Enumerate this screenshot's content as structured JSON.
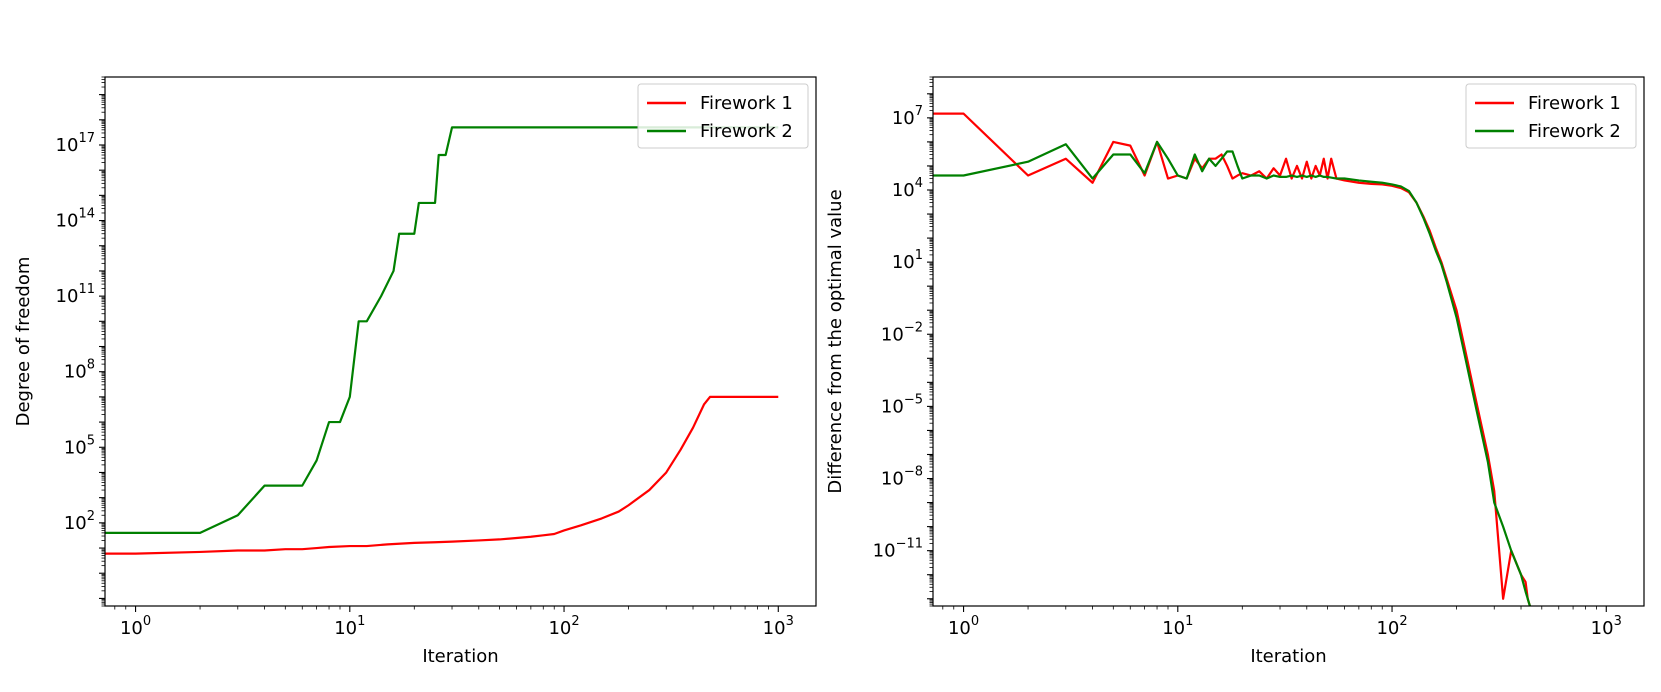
{
  "colors": {
    "firework_1": "#ff0000",
    "firework_2": "#008000"
  },
  "legend": {
    "items": [
      "Firework 1",
      "Firework 2"
    ],
    "placement": "top-right"
  },
  "chart_data": [
    {
      "type": "line",
      "xlabel": "Iteration",
      "ylabel": "Degree of freedom",
      "xscale": "log",
      "yscale": "log",
      "xlim": [
        0.72,
        1500
      ],
      "ylim": [
        0.05,
        5e+19
      ],
      "xticks": [
        {
          "base": "10",
          "exp": "0",
          "value": 1
        },
        {
          "base": "10",
          "exp": "1",
          "value": 10
        },
        {
          "base": "10",
          "exp": "2",
          "value": 100
        },
        {
          "base": "10",
          "exp": "3",
          "value": 1000
        }
      ],
      "yticks": [
        {
          "base": "10",
          "exp": "2",
          "value": 100
        },
        {
          "base": "10",
          "exp": "5",
          "value": 100000
        },
        {
          "base": "10",
          "exp": "8",
          "value": 100000000
        },
        {
          "base": "10",
          "exp": "11",
          "value": 100000000000
        },
        {
          "base": "10",
          "exp": "14",
          "value": 100000000000000
        },
        {
          "base": "10",
          "exp": "17",
          "value": 100000000000000000
        }
      ],
      "grid": false,
      "legend": "top-right",
      "series": [
        {
          "name": "Firework 1",
          "color": "#ff0000",
          "x": [
            0.72,
            1,
            2,
            3,
            4,
            5,
            6,
            7,
            8,
            10,
            12,
            15,
            20,
            25,
            30,
            40,
            50,
            60,
            70,
            80,
            90,
            100,
            120,
            150,
            180,
            200,
            250,
            300,
            350,
            400,
            450,
            480,
            500,
            1000
          ],
          "y": [
            6,
            6,
            7,
            8,
            8,
            9,
            9,
            10,
            11,
            12,
            12,
            14,
            16,
            17,
            18,
            20,
            22,
            25,
            28,
            32,
            36,
            50,
            80,
            150,
            280,
            500,
            2000,
            10000,
            80000,
            600000,
            5000000,
            10000000,
            10000000,
            10000000
          ]
        },
        {
          "name": "Firework 2",
          "color": "#008000",
          "x": [
            0.72,
            1,
            2,
            3,
            4,
            4.01,
            5,
            6,
            7,
            8,
            8.01,
            9,
            10,
            11,
            11.01,
            12,
            14,
            16,
            17,
            18,
            18.01,
            20,
            21,
            22,
            22.01,
            25,
            26,
            28,
            28.01,
            30,
            30.01,
            1000
          ],
          "y": [
            40,
            40,
            40,
            200,
            3000,
            3000,
            3000,
            3000,
            30000,
            1000000,
            1000000,
            1000000,
            10000000,
            10000000000,
            10000000000,
            10000000000,
            100000000000.0,
            1000000000000.0,
            30000000000000.0,
            30000000000000.0,
            30000000000000.0,
            30000000000000.0,
            500000000000000.0,
            500000000000000.0,
            500000000000000.0,
            500000000000000.0,
            4e+16,
            4e+16,
            4e+16,
            5e+17,
            5e+17,
            5e+17
          ]
        }
      ]
    },
    {
      "type": "line",
      "xlabel": "Iteration",
      "ylabel": "Difference from the optimal value",
      "xscale": "log",
      "yscale": "log",
      "xlim": [
        0.72,
        1500
      ],
      "ylim": [
        5e-14,
        500000000.0
      ],
      "xticks": [
        {
          "base": "10",
          "exp": "0",
          "value": 1
        },
        {
          "base": "10",
          "exp": "1",
          "value": 10
        },
        {
          "base": "10",
          "exp": "2",
          "value": 100
        },
        {
          "base": "10",
          "exp": "3",
          "value": 1000
        }
      ],
      "yticks": [
        {
          "base": "10",
          "exp": "−11",
          "value": 1e-11
        },
        {
          "base": "10",
          "exp": "−8",
          "value": 1e-08
        },
        {
          "base": "10",
          "exp": "−5",
          "value": 1e-05
        },
        {
          "base": "10",
          "exp": "−2",
          "value": 0.01
        },
        {
          "base": "10",
          "exp": "1",
          "value": 10
        },
        {
          "base": "10",
          "exp": "4",
          "value": 10000
        },
        {
          "base": "10",
          "exp": "7",
          "value": 10000000
        }
      ],
      "grid": false,
      "legend": "top-right",
      "series": [
        {
          "name": "Firework 1",
          "color": "#ff0000",
          "x": [
            0.72,
            1,
            2,
            3,
            4,
            5,
            6,
            7,
            8,
            9,
            10,
            11,
            12,
            13,
            14,
            15,
            16,
            17,
            18,
            19,
            20,
            22,
            24,
            26,
            28,
            30,
            32,
            34,
            36,
            38,
            40,
            42,
            44,
            46,
            48,
            50,
            52,
            55,
            60,
            70,
            80,
            90,
            100,
            110,
            120,
            130,
            140,
            150,
            160,
            170,
            180,
            200,
            220,
            250,
            280,
            300,
            330,
            360,
            400,
            420,
            430,
            440,
            445,
            445
          ],
          "y": [
            15000000,
            15000000,
            40000,
            200000,
            20000,
            1000000,
            700000,
            40000,
            1000000,
            30000,
            40000,
            30000,
            200000,
            80000,
            200000,
            200000,
            300000,
            100000,
            30000,
            40000,
            50000,
            40000,
            60000,
            30000,
            80000,
            40000,
            200000,
            30000,
            100000,
            30000,
            150000,
            30000,
            100000,
            40000,
            200000,
            30000,
            200000,
            30000,
            25000,
            20000,
            18000,
            17000,
            15000,
            12000,
            8000,
            3000,
            800,
            200,
            40,
            10,
            2,
            0.1,
            0.002,
            1e-05,
            1e-07,
            3e-09,
            1e-13,
            1e-11,
            1e-12,
            5e-13,
            1e-13,
            5e-14,
            5e-14,
            5e-14
          ]
        },
        {
          "name": "Firework 2",
          "color": "#008000",
          "x": [
            0.72,
            1,
            2,
            3,
            4,
            5,
            6,
            7,
            8,
            9,
            10,
            11,
            12,
            13,
            14,
            15,
            16,
            17,
            18,
            19,
            20,
            22,
            24,
            26,
            28,
            30,
            32,
            34,
            36,
            38,
            40,
            42,
            44,
            46,
            48,
            50,
            55,
            60,
            70,
            80,
            90,
            100,
            110,
            120,
            130,
            140,
            150,
            160,
            170,
            180,
            200,
            220,
            250,
            280,
            300,
            330,
            360,
            400,
            420,
            430,
            440,
            445,
            445
          ],
          "y": [
            40000,
            40000,
            150000,
            800000,
            30000,
            300000,
            300000,
            50000,
            1000000,
            200000,
            40000,
            30000,
            300000,
            60000,
            200000,
            100000,
            200000,
            400000,
            400000,
            100000,
            30000,
            40000,
            40000,
            30000,
            40000,
            35000,
            35000,
            40000,
            35000,
            40000,
            35000,
            40000,
            35000,
            40000,
            35000,
            35000,
            30000,
            30000,
            25000,
            22000,
            20000,
            17000,
            14000,
            9000,
            3000,
            700,
            150,
            30,
            8,
            1.5,
            0.05,
            0.001,
            5e-06,
            5e-08,
            1e-09,
            1e-10,
            1e-11,
            1e-12,
            2e-13,
            1e-13,
            5e-14,
            5e-14,
            5e-14
          ]
        }
      ]
    }
  ]
}
